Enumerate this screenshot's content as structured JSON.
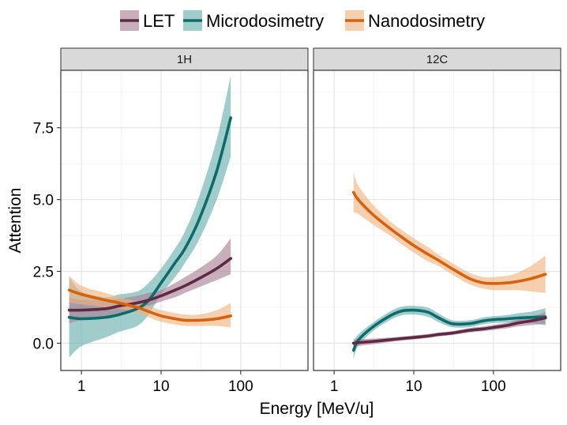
{
  "chart_data": {
    "type": "line",
    "ylabel": "Attention",
    "xlabel": "Energy [MeV/u]",
    "x_scale": "log10",
    "xlim": [
      0.55,
      700
    ],
    "ylim": [
      -0.95,
      9.5
    ],
    "x_ticks": [
      {
        "value": 1,
        "label": "1"
      },
      {
        "value": 10,
        "label": "10"
      },
      {
        "value": 100,
        "label": "100"
      }
    ],
    "y_ticks": [
      {
        "value": 0,
        "label": "0.0"
      },
      {
        "value": 2.5,
        "label": "2.5"
      },
      {
        "value": 5,
        "label": "5.0"
      },
      {
        "value": 7.5,
        "label": "7.5"
      }
    ],
    "grid": true,
    "legend": {
      "position": "top",
      "entries": [
        {
          "name": "LET",
          "color": "#5c2a45",
          "fill": "#a87c93"
        },
        {
          "name": "Microdosimetry",
          "color": "#0f6b6b",
          "fill": "#66adad"
        },
        {
          "name": "Nanodosimetry",
          "color": "#d4620f",
          "fill": "#f0b17e"
        }
      ]
    },
    "panels": [
      {
        "title": "1H",
        "series": [
          {
            "name": "Microdosimetry",
            "color": "#0f6b6b",
            "fill": "#66adad",
            "x": [
              0.7,
              1,
              2,
              3,
              5,
              7,
              10,
              15,
              20,
              30,
              50,
              75
            ],
            "y": [
              0.9,
              0.85,
              0.9,
              1.0,
              1.2,
              1.5,
              2.1,
              2.8,
              3.3,
              4.3,
              6.0,
              7.85
            ],
            "lower": [
              -0.5,
              -0.1,
              0.2,
              0.4,
              0.6,
              1.0,
              1.7,
              2.3,
              2.8,
              3.6,
              5.0,
              6.5
            ],
            "upper": [
              2.3,
              1.8,
              1.6,
              1.7,
              1.8,
              2.1,
              2.6,
              3.3,
              3.9,
              5.1,
              7.1,
              9.3
            ]
          },
          {
            "name": "LET",
            "color": "#5c2a45",
            "fill": "#a87c93",
            "x": [
              0.7,
              1,
              2,
              3,
              5,
              7,
              10,
              15,
              20,
              30,
              50,
              75
            ],
            "y": [
              1.15,
              1.15,
              1.2,
              1.3,
              1.4,
              1.5,
              1.65,
              1.85,
              2.0,
              2.25,
              2.6,
              2.95
            ],
            "lower": [
              0.7,
              0.8,
              0.9,
              1.0,
              1.15,
              1.3,
              1.45,
              1.6,
              1.75,
              1.95,
              2.2,
              2.4
            ],
            "upper": [
              1.6,
              1.5,
              1.5,
              1.55,
              1.65,
              1.75,
              1.85,
              2.1,
              2.3,
              2.6,
              3.05,
              3.65
            ]
          },
          {
            "name": "Nanodosimetry",
            "color": "#d4620f",
            "fill": "#f0b17e",
            "x": [
              0.7,
              1,
              2,
              3,
              5,
              7,
              10,
              15,
              20,
              30,
              50,
              75
            ],
            "y": [
              1.85,
              1.7,
              1.5,
              1.4,
              1.25,
              1.1,
              0.95,
              0.85,
              0.8,
              0.8,
              0.85,
              0.95
            ],
            "lower": [
              1.4,
              1.35,
              1.25,
              1.2,
              1.05,
              0.9,
              0.75,
              0.65,
              0.6,
              0.6,
              0.6,
              0.55
            ],
            "upper": [
              2.35,
              2.0,
              1.75,
              1.6,
              1.45,
              1.3,
              1.15,
              1.05,
              1.0,
              1.0,
              1.15,
              1.4
            ]
          }
        ]
      },
      {
        "title": "12C",
        "series": [
          {
            "name": "Nanodosimetry",
            "color": "#d4620f",
            "fill": "#f0b17e",
            "x": [
              1.75,
              2,
              3,
              5,
              7,
              10,
              15,
              20,
              30,
              50,
              75,
              100,
              150,
              200,
              300,
              450
            ],
            "y": [
              5.25,
              5.0,
              4.5,
              4.0,
              3.7,
              3.4,
              3.1,
              2.9,
              2.6,
              2.25,
              2.1,
              2.08,
              2.1,
              2.15,
              2.25,
              2.4
            ],
            "lower": [
              4.55,
              4.5,
              4.15,
              3.75,
              3.45,
              3.15,
              2.85,
              2.7,
              2.4,
              2.05,
              1.9,
              1.85,
              1.85,
              1.85,
              1.8,
              1.75
            ],
            "upper": [
              5.95,
              5.5,
              4.85,
              4.25,
              3.95,
              3.65,
              3.35,
              3.1,
              2.8,
              2.45,
              2.3,
              2.3,
              2.35,
              2.45,
              2.7,
              3.05
            ]
          },
          {
            "name": "Microdosimetry",
            "color": "#0f6b6b",
            "fill": "#66adad",
            "x": [
              1.75,
              2,
              3,
              5,
              7,
              10,
              15,
              20,
              30,
              50,
              75,
              100,
              150,
              200,
              300,
              450
            ],
            "y": [
              -0.25,
              0.1,
              0.55,
              0.95,
              1.12,
              1.15,
              1.08,
              0.9,
              0.68,
              0.68,
              0.78,
              0.82,
              0.85,
              0.88,
              0.9,
              0.92
            ],
            "lower": [
              -0.55,
              -0.1,
              0.4,
              0.8,
              0.97,
              1.0,
              0.92,
              0.75,
              0.56,
              0.56,
              0.66,
              0.7,
              0.72,
              0.72,
              0.7,
              0.62
            ],
            "upper": [
              0.05,
              0.3,
              0.7,
              1.1,
              1.27,
              1.3,
              1.24,
              1.05,
              0.8,
              0.8,
              0.9,
              0.94,
              0.98,
              1.04,
              1.1,
              1.22
            ]
          },
          {
            "name": "LET",
            "color": "#5c2a45",
            "fill": "#a87c93",
            "x": [
              1.75,
              2,
              3,
              5,
              7,
              10,
              15,
              20,
              30,
              50,
              75,
              100,
              150,
              200,
              300,
              450
            ],
            "y": [
              0.0,
              0.02,
              0.06,
              0.12,
              0.16,
              0.2,
              0.25,
              0.3,
              0.35,
              0.45,
              0.5,
              0.55,
              0.62,
              0.7,
              0.78,
              0.88
            ],
            "lower": [
              -0.15,
              -0.1,
              -0.04,
              0.04,
              0.09,
              0.13,
              0.18,
              0.23,
              0.28,
              0.37,
              0.42,
              0.46,
              0.52,
              0.58,
              0.63,
              0.68
            ],
            "upper": [
              0.15,
              0.14,
              0.16,
              0.2,
              0.23,
              0.27,
              0.32,
              0.37,
              0.42,
              0.53,
              0.58,
              0.64,
              0.72,
              0.82,
              0.93,
              1.08
            ]
          }
        ]
      }
    ]
  }
}
